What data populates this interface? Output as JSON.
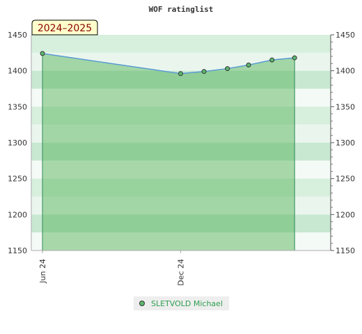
{
  "chart_data": {
    "type": "line",
    "title": "WOF ratinglist",
    "season_label": "2024–2025",
    "ylim": [
      1150,
      1450
    ],
    "y_ticks": [
      1150,
      1200,
      1250,
      1300,
      1350,
      1400,
      1450
    ],
    "y_tick_labels": [
      "1150",
      "1200",
      "1250",
      "1300",
      "1350",
      "1400",
      "1450"
    ],
    "x_range": [
      "2024-06-01",
      "2025-06-15"
    ],
    "x_ticks": [
      {
        "date": "2024-06-01",
        "label": "Jun 24"
      },
      {
        "date": "2024-12-01",
        "label": "Dec 24"
      }
    ],
    "series": [
      {
        "name": "SLETVOLD Michael",
        "points": [
          {
            "date": "2024-06-01",
            "value": 1424
          },
          {
            "date": "2024-12-01",
            "value": 1396
          },
          {
            "date": "2025-01-01",
            "value": 1399
          },
          {
            "date": "2025-02-01",
            "value": 1403
          },
          {
            "date": "2025-03-01",
            "value": 1408
          },
          {
            "date": "2025-04-01",
            "value": 1415
          },
          {
            "date": "2025-05-01",
            "value": 1418
          }
        ]
      }
    ],
    "legend_position": "bottom-center",
    "grid": "banded",
    "colors": {
      "line": "#5b9bd5",
      "fill": "#4caf50",
      "marker": "#5cb870",
      "band_dark": "#7cc495",
      "band_light": "#a8d9b6",
      "legend_text": "#2e9e4f",
      "season_text": "#8b0000",
      "season_bg": "#ffffcc"
    }
  }
}
